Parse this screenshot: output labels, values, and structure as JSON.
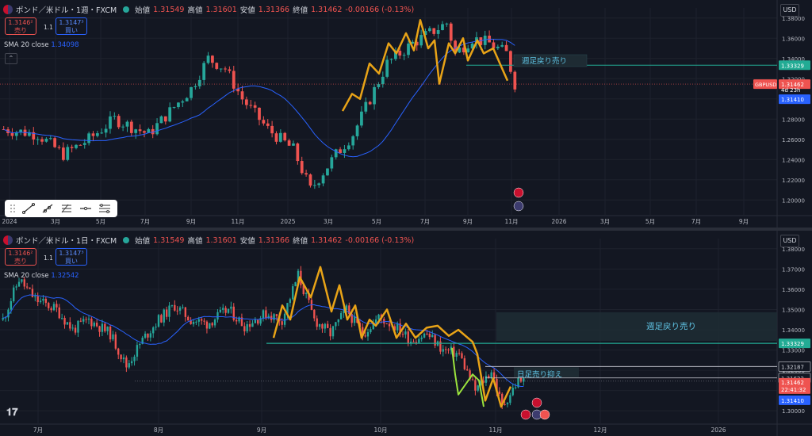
{
  "colors": {
    "up": "#26a69a",
    "down": "#ef5350",
    "sma": "#2962ff",
    "zigzag": "#e8a317",
    "green_line": "#9be33d",
    "level": "#22ab94",
    "bg": "#131722"
  },
  "panels": [
    {
      "id": "weekly",
      "header": {
        "symbol": "ポンド／米ドル・1週・FXCM",
        "open_label": "始値",
        "open": "1.31549",
        "high_label": "高値",
        "high": "1.31601",
        "low_label": "安値",
        "low": "1.31366",
        "close_label": "終値",
        "close": "1.31462",
        "change": "-0.00166 (-0.13%)"
      },
      "sell_price": "1.3146²",
      "sell_label": "売り",
      "buy_price": "1.3147³",
      "buy_label": "買い",
      "spread": "1.1",
      "sma_label": "SMA 20 close",
      "sma_value": "1.34098",
      "currency": "USD",
      "annotation": "週足戻り売り"
    },
    {
      "id": "daily",
      "header": {
        "symbol": "ポンド／米ドル・1日・FXCM",
        "open_label": "始値",
        "open": "1.31549",
        "high_label": "高値",
        "high": "1.31601",
        "low_label": "安値",
        "low": "1.31366",
        "close_label": "終値",
        "close": "1.31462",
        "change": "-0.00166 (-0.13%)"
      },
      "sell_price": "1.3146²",
      "sell_label": "売り",
      "buy_price": "1.3147³",
      "buy_label": "買い",
      "spread": "1.1",
      "sma_label": "SMA 20 close",
      "sma_value": "1.32542",
      "currency": "USD",
      "annotation1": "週足戻り売り",
      "annotation2": "日足売り抑え"
    }
  ],
  "chart_data": [
    {
      "type": "candlestick",
      "title": "ポンド／米ドル・1週・FXCM",
      "timeframe": "1W",
      "ylim": [
        1.19,
        1.39
      ],
      "y_ticks": [
        "1.38000",
        "1.36000",
        "1.34000",
        "1.32000",
        "1.30000",
        "1.28000",
        "1.26000",
        "1.24000",
        "1.22000",
        "1.20000"
      ],
      "x_ticks": [
        "2024",
        "3月",
        "5月",
        "7月",
        "9月",
        "11月",
        "2025",
        "3月",
        "5月",
        "7月",
        "9月",
        "11月",
        "2026",
        "3月",
        "5月",
        "7月",
        "9月"
      ],
      "price_labels": [
        {
          "text": "1.33329",
          "kind": "level"
        },
        {
          "text": "GBPUSD",
          "kind": "symbol"
        },
        {
          "text": "1.31462",
          "kind": "last"
        },
        {
          "text": "4d 23h",
          "kind": "countdown"
        },
        {
          "text": "1.31410",
          "kind": "bid"
        }
      ],
      "last_price": 1.31462,
      "resistance_level": 1.33329,
      "series": [
        {
          "name": "SMA 20 close"
        }
      ]
    },
    {
      "type": "candlestick",
      "title": "ポンド／米ドル・1日・FXCM",
      "timeframe": "1D",
      "ylim": [
        1.295,
        1.385
      ],
      "y_ticks": [
        "1.38000",
        "1.37000",
        "1.36000",
        "1.35000",
        "1.34000",
        "1.33000",
        "1.32000",
        "1.31000",
        "1.30000"
      ],
      "x_ticks": [
        "7月",
        "8月",
        "9月",
        "10月",
        "11月",
        "12月",
        "2026"
      ],
      "price_labels": [
        {
          "text": "1.33329",
          "kind": "level"
        },
        {
          "text": "1.32187",
          "kind": "level"
        },
        {
          "text": "1.31622",
          "kind": "level"
        },
        {
          "text": "1.31462",
          "kind": "last"
        },
        {
          "text": "22:41:32",
          "kind": "countdown"
        },
        {
          "text": "1.31410",
          "kind": "bid"
        }
      ],
      "last_price": 1.31462,
      "resistance_level": 1.33329,
      "series": [
        {
          "name": "SMA 20 close"
        }
      ]
    }
  ]
}
